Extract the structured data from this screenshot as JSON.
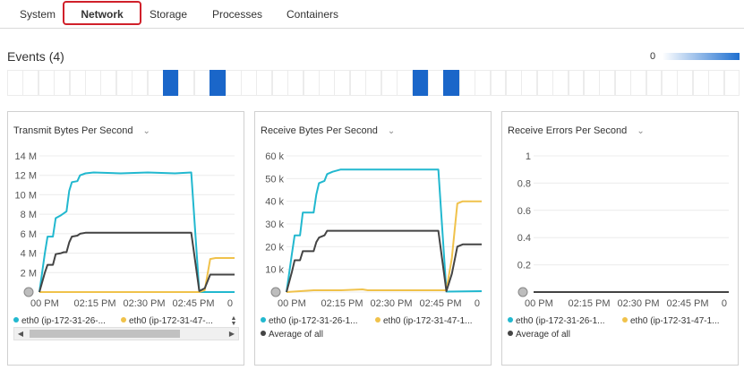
{
  "tabs": [
    {
      "label": "System",
      "active": false
    },
    {
      "label": "Network",
      "active": true
    },
    {
      "label": "Storage",
      "active": false
    },
    {
      "label": "Processes",
      "active": false
    },
    {
      "label": "Containers",
      "active": false
    }
  ],
  "events": {
    "title": "Events (4)",
    "scale_min_label": "0",
    "scale_colors": [
      "#ffffff",
      "#1e6fd0"
    ],
    "cells_total": 47,
    "active_cells": [
      10,
      13,
      26,
      28
    ],
    "active_color": "#1a66c9"
  },
  "series_colors": {
    "eth0_a": "#22b8cf",
    "eth0_b": "#f0c24b",
    "average": "#444444"
  },
  "panels": [
    {
      "title": "Transmit Bytes Per Second",
      "legend": [
        {
          "label": "eth0 (ip-172-31-26-...",
          "color": "#22b8cf"
        },
        {
          "label": "eth0 (ip-172-31-47-...",
          "color": "#f0c24b"
        }
      ],
      "has_scrollbar": true
    },
    {
      "title": "Receive Bytes Per Second",
      "legend": [
        {
          "label": "eth0 (ip-172-31-26-1...",
          "color": "#22b8cf"
        },
        {
          "label": "eth0 (ip-172-31-47-1...",
          "color": "#f0c24b"
        },
        {
          "label": "Average of all",
          "color": "#444444"
        }
      ],
      "has_scrollbar": false
    },
    {
      "title": "Receive Errors Per Second",
      "legend": [
        {
          "label": "eth0 (ip-172-31-26-1...",
          "color": "#22b8cf"
        },
        {
          "label": "eth0 (ip-172-31-47-1...",
          "color": "#f0c24b"
        },
        {
          "label": "Average of all",
          "color": "#444444"
        }
      ],
      "has_scrollbar": false
    }
  ],
  "chart_data": [
    {
      "type": "line",
      "title": "Transmit Bytes Per Second",
      "xlabel": "",
      "ylabel": "",
      "x_ticks": [
        "00 PM",
        "02:15 PM",
        "02:30 PM",
        "02:45 PM",
        "0"
      ],
      "y_ticks": [
        "",
        "2 M",
        "4 M",
        "6 M",
        "8 M",
        "10 M",
        "12 M",
        "14 M"
      ],
      "ylim": [
        0,
        14000000
      ],
      "x_minutes_range": [
        0,
        72
      ],
      "series": [
        {
          "name": "eth0 (ip-172-31-26-...",
          "values": [
            [
              0,
              0
            ],
            [
              2,
              4000000
            ],
            [
              3,
              5700000
            ],
            [
              5,
              5700000
            ],
            [
              6,
              7600000
            ],
            [
              8,
              7900000
            ],
            [
              9,
              8100000
            ],
            [
              10,
              8300000
            ],
            [
              11,
              10400000
            ],
            [
              12,
              11300000
            ],
            [
              14,
              11400000
            ],
            [
              15,
              12000000
            ],
            [
              17,
              12200000
            ],
            [
              20,
              12300000
            ],
            [
              30,
              12200000
            ],
            [
              40,
              12300000
            ],
            [
              50,
              12200000
            ],
            [
              56,
              12300000
            ],
            [
              59,
              0
            ],
            [
              72,
              0
            ]
          ]
        },
        {
          "name": "eth0 (ip-172-31-47-...",
          "values": [
            [
              0,
              0
            ],
            [
              5,
              0
            ],
            [
              15,
              0
            ],
            [
              25,
              0
            ],
            [
              35,
              0
            ],
            [
              45,
              0
            ],
            [
              55,
              0
            ],
            [
              59,
              0
            ],
            [
              61,
              200000
            ],
            [
              63,
              3400000
            ],
            [
              65,
              3500000
            ],
            [
              72,
              3500000
            ]
          ]
        },
        {
          "name": "",
          "values": [
            [
              0,
              0
            ],
            [
              2,
              2000000
            ],
            [
              3,
              2800000
            ],
            [
              5,
              2800000
            ],
            [
              6,
              3900000
            ],
            [
              8,
              4000000
            ],
            [
              9,
              4100000
            ],
            [
              10,
              4100000
            ],
            [
              11,
              5100000
            ],
            [
              12,
              5700000
            ],
            [
              14,
              5800000
            ],
            [
              15,
              6000000
            ],
            [
              17,
              6100000
            ],
            [
              20,
              6100000
            ],
            [
              30,
              6100000
            ],
            [
              40,
              6100000
            ],
            [
              50,
              6100000
            ],
            [
              56,
              6100000
            ],
            [
              59,
              100000
            ],
            [
              61,
              400000
            ],
            [
              63,
              1800000
            ],
            [
              65,
              1800000
            ],
            [
              72,
              1800000
            ]
          ]
        }
      ]
    },
    {
      "type": "line",
      "title": "Receive Bytes Per Second",
      "xlabel": "",
      "ylabel": "",
      "x_ticks": [
        "00 PM",
        "02:15 PM",
        "02:30 PM",
        "02:45 PM",
        "0"
      ],
      "y_ticks": [
        "",
        "10 k",
        "20 k",
        "30 k",
        "40 k",
        "50 k",
        "60 k"
      ],
      "ylim": [
        0,
        60000
      ],
      "x_minutes_range": [
        0,
        72
      ],
      "series": [
        {
          "name": "eth0 (ip-172-31-26-1...",
          "values": [
            [
              0,
              0
            ],
            [
              2,
              17000
            ],
            [
              3,
              25000
            ],
            [
              5,
              25000
            ],
            [
              6,
              35000
            ],
            [
              8,
              35000
            ],
            [
              10,
              35000
            ],
            [
              11,
              43000
            ],
            [
              12,
              48000
            ],
            [
              14,
              49000
            ],
            [
              15,
              52000
            ],
            [
              17,
              53000
            ],
            [
              20,
              54000
            ],
            [
              30,
              54000
            ],
            [
              40,
              54000
            ],
            [
              50,
              54000
            ],
            [
              56,
              54000
            ],
            [
              59,
              200
            ],
            [
              72,
              400
            ]
          ]
        },
        {
          "name": "eth0 (ip-172-31-47-1...",
          "values": [
            [
              0,
              0
            ],
            [
              10,
              800
            ],
            [
              20,
              800
            ],
            [
              28,
              1200
            ],
            [
              30,
              800
            ],
            [
              40,
              800
            ],
            [
              50,
              800
            ],
            [
              59,
              800
            ],
            [
              61,
              15000
            ],
            [
              63,
              39000
            ],
            [
              65,
              40000
            ],
            [
              72,
              40000
            ]
          ]
        },
        {
          "name": "Average of all",
          "values": [
            [
              0,
              0
            ],
            [
              2,
              9000
            ],
            [
              3,
              14000
            ],
            [
              5,
              14000
            ],
            [
              6,
              18000
            ],
            [
              8,
              18000
            ],
            [
              10,
              18000
            ],
            [
              11,
              22000
            ],
            [
              12,
              24000
            ],
            [
              14,
              25000
            ],
            [
              15,
              27000
            ],
            [
              17,
              27000
            ],
            [
              20,
              27000
            ],
            [
              30,
              27000
            ],
            [
              40,
              27000
            ],
            [
              50,
              27000
            ],
            [
              56,
              27000
            ],
            [
              59,
              400
            ],
            [
              61,
              8000
            ],
            [
              63,
              20000
            ],
            [
              65,
              21000
            ],
            [
              72,
              21000
            ]
          ]
        }
      ]
    },
    {
      "type": "line",
      "title": "Receive Errors Per Second",
      "xlabel": "",
      "ylabel": "",
      "x_ticks": [
        "00 PM",
        "02:15 PM",
        "02:30 PM",
        "02:45 PM",
        "0"
      ],
      "y_ticks": [
        "",
        "0.2",
        "0.4",
        "0.6",
        "0.8",
        "1"
      ],
      "ylim": [
        0,
        1
      ],
      "x_minutes_range": [
        0,
        72
      ],
      "series": [
        {
          "name": "eth0 (ip-172-31-26-1...",
          "values": [
            [
              0,
              0
            ],
            [
              72,
              0
            ]
          ]
        },
        {
          "name": "eth0 (ip-172-31-47-1...",
          "values": [
            [
              0,
              0
            ],
            [
              72,
              0
            ]
          ]
        },
        {
          "name": "Average of all",
          "values": [
            [
              0,
              0
            ],
            [
              72,
              0
            ]
          ]
        }
      ]
    }
  ]
}
